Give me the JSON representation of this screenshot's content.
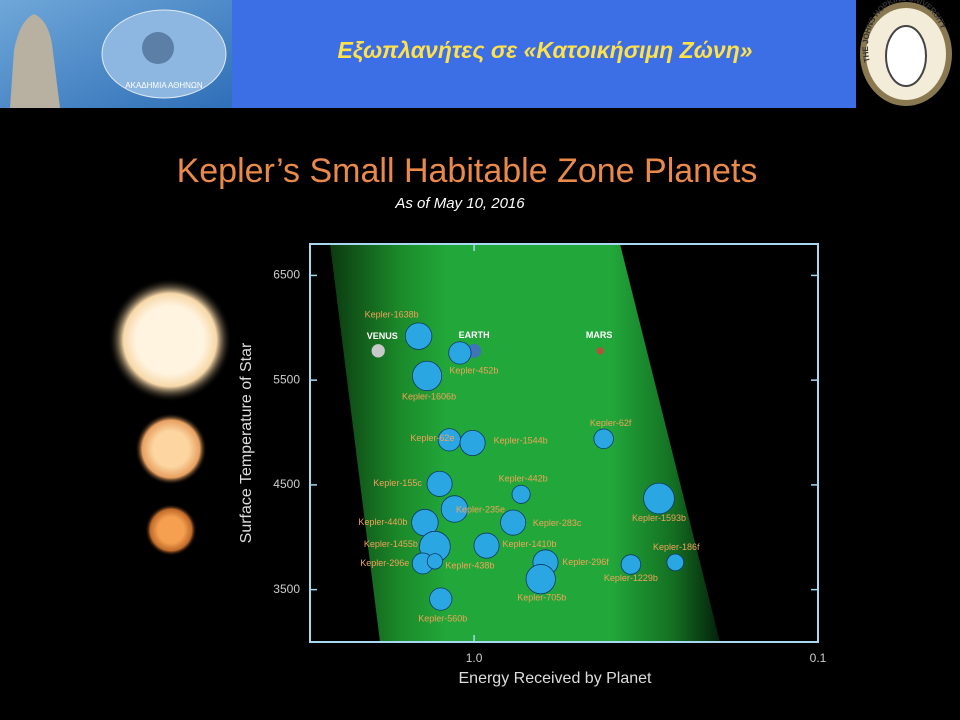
{
  "header": {
    "title": "Εξωπλανήτες σε «Κατοικήσιμη Ζώνη»",
    "left_logo_text": "ΑΚΑΔΗΜΙΑ ΑΘΗΝΩΝ",
    "right_logo_text": "THE JOHNS HOPKINS UNIVERSITY"
  },
  "chart_data": {
    "type": "bubble",
    "title": "Kepler’s Small Habitable Zone Planets",
    "subtitle": "As of May 10, 2016",
    "x_label": "Energy Received by Planet",
    "y_label": "Surface Temperature of Star",
    "xscale": "log",
    "xlim": [
      3,
      0.1
    ],
    "xticks": [
      {
        "value": 1,
        "label": "1.0"
      },
      0.1
    ],
    "ylim": [
      3000,
      6800
    ],
    "yticks": [
      3500,
      4500,
      5500,
      6500
    ],
    "color": "#2aa7e2",
    "points": [
      {
        "label": "VENUS",
        "x": 1.9,
        "y": 5780,
        "size": 0.95,
        "color": "#c9c9c9"
      },
      {
        "label": "EARTH",
        "x": 1.0,
        "y": 5780,
        "size": 1.0,
        "color": "#3f74b8"
      },
      {
        "label": "MARS",
        "x": 0.43,
        "y": 5780,
        "size": 0.53,
        "color": "#b0553a"
      },
      {
        "label": "Kepler-1638b",
        "x": 1.45,
        "y": 5920,
        "size": 1.9
      },
      {
        "label": "Kepler-452b",
        "x": 1.1,
        "y": 5760,
        "size": 1.6
      },
      {
        "label": "Kepler-1606b",
        "x": 1.37,
        "y": 5540,
        "size": 2.1
      },
      {
        "label": "Kepler-62e",
        "x": 1.18,
        "y": 4930,
        "size": 1.6
      },
      {
        "label": "Kepler-1544b",
        "x": 1.01,
        "y": 4900,
        "size": 1.8
      },
      {
        "label": "Kepler-62f",
        "x": 0.42,
        "y": 4940,
        "size": 1.4
      },
      {
        "label": "Kepler-155c",
        "x": 1.26,
        "y": 4510,
        "size": 1.8
      },
      {
        "label": "Kepler-442b",
        "x": 0.73,
        "y": 4410,
        "size": 1.3
      },
      {
        "label": "Kepler-235e",
        "x": 1.14,
        "y": 4270,
        "size": 1.9
      },
      {
        "label": "Kepler-283c",
        "x": 0.77,
        "y": 4140,
        "size": 1.8
      },
      {
        "label": "Kepler-1593b",
        "x": 0.29,
        "y": 4370,
        "size": 2.2
      },
      {
        "label": "Kepler-440b",
        "x": 1.39,
        "y": 4140,
        "size": 1.9
      },
      {
        "label": "Kepler-1455b",
        "x": 1.3,
        "y": 3910,
        "size": 2.2
      },
      {
        "label": "Kepler-1410b",
        "x": 0.92,
        "y": 3920,
        "size": 1.8
      },
      {
        "label": "Kepler-296e",
        "x": 1.41,
        "y": 3750,
        "size": 1.5
      },
      {
        "label": "Kepler-438b",
        "x": 1.3,
        "y": 3770,
        "size": 1.1
      },
      {
        "label": "Kepler-296f",
        "x": 0.62,
        "y": 3760,
        "size": 1.8
      },
      {
        "label": "Kepler-1229b",
        "x": 0.35,
        "y": 3740,
        "size": 1.4
      },
      {
        "label": "Kepler-186f",
        "x": 0.26,
        "y": 3760,
        "size": 1.2
      },
      {
        "label": "Kepler-705b",
        "x": 0.64,
        "y": 3600,
        "size": 2.1
      },
      {
        "label": "Kepler-560b",
        "x": 1.25,
        "y": 3410,
        "size": 1.6
      }
    ]
  }
}
